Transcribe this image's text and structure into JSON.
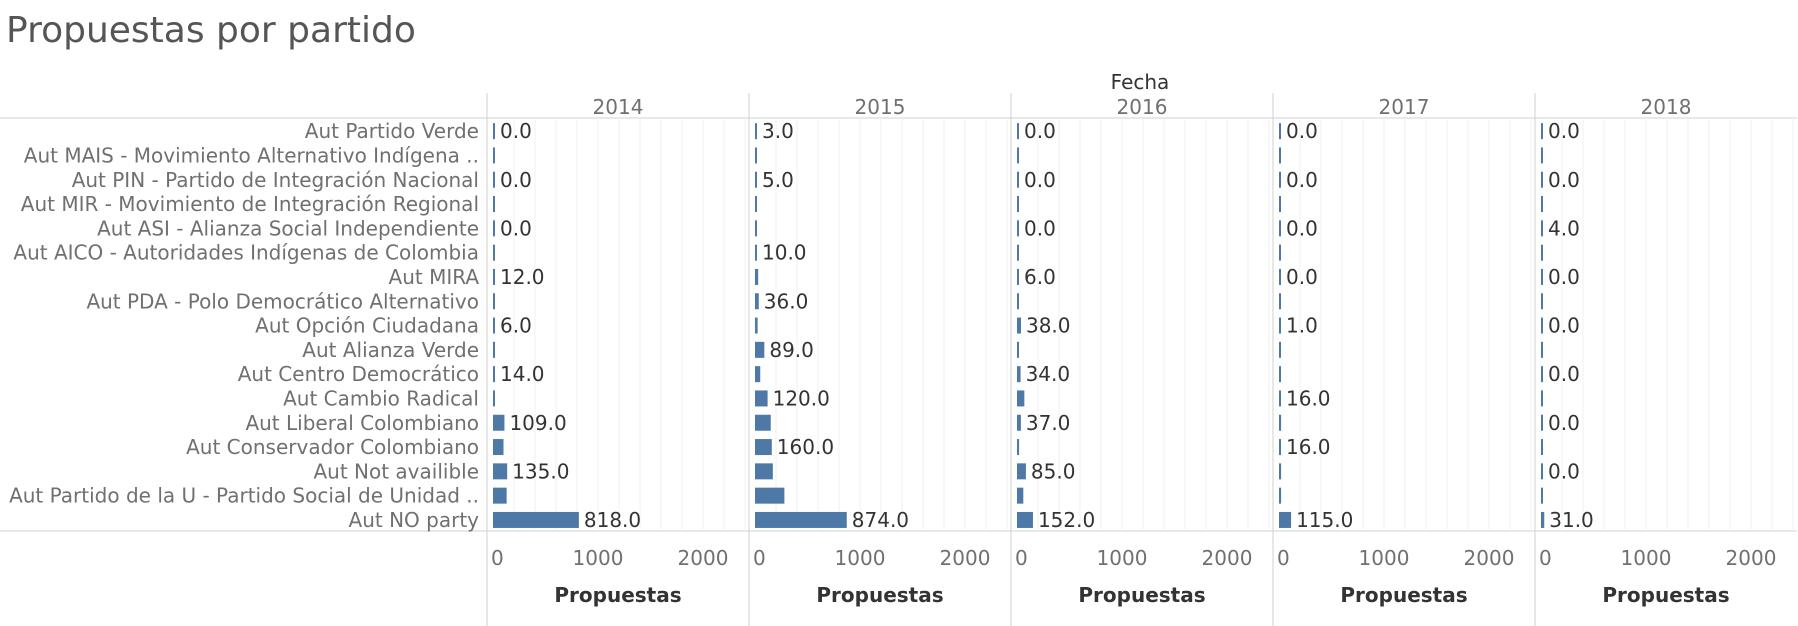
{
  "title": "Propuestas por partido",
  "colors": {
    "bar": "#4e79a7",
    "grid": "#f0f0f0",
    "divider": "#d0d0d0"
  },
  "chart_data": {
    "type": "bar",
    "orientation": "horizontal",
    "title": "Propuestas por partido",
    "column_title": "Fecha",
    "xlabel": "Propuestas",
    "xlim": [
      0,
      2400
    ],
    "xticks": [
      0,
      1000,
      2000
    ],
    "xtick_labels": [
      "0",
      "1000",
      "2000"
    ],
    "categories": [
      "Aut Partido Verde",
      "Aut MAIS - Movimiento Alternativo Indígena ..",
      "Aut PIN - Partido de Integración Nacional",
      "Aut MIR - Movimiento de Integración Regional",
      "Aut ASI - Alianza Social Independiente",
      "Aut AICO - Autoridades Indígenas de Colombia",
      "Aut MIRA",
      "Aut PDA - Polo Democrático Alternativo",
      "Aut Opción Ciudadana",
      "Aut Alianza Verde",
      "Aut Centro Democrático",
      "Aut Cambio Radical",
      "Aut Liberal Colombiano",
      "Aut Conservador Colombiano",
      "Aut Not availible",
      "Aut Partido de la U - Partido Social de Unidad ..",
      "Aut NO party"
    ],
    "series": [
      {
        "name": "2014",
        "values": [
          0,
          3,
          0,
          2,
          0,
          2,
          12,
          3,
          6,
          3,
          14,
          15,
          109,
          100,
          135,
          130,
          818
        ],
        "labels": [
          "0.0",
          "",
          "0.0",
          "",
          "0.0",
          "",
          "12.0",
          "",
          "6.0",
          "",
          "14.0",
          "",
          "109.0",
          "",
          "135.0",
          "",
          "818.0"
        ]
      },
      {
        "name": "2015",
        "values": [
          3,
          2,
          5,
          2,
          3,
          10,
          30,
          36,
          25,
          89,
          50,
          120,
          150,
          160,
          170,
          280,
          874
        ],
        "labels": [
          "3.0",
          "",
          "5.0",
          "",
          "",
          "10.0",
          "",
          "36.0",
          "",
          "89.0",
          "",
          "120.0",
          "",
          "160.0",
          "",
          "",
          "874.0"
        ]
      },
      {
        "name": "2016",
        "values": [
          0,
          2,
          0,
          2,
          0,
          2,
          6,
          3,
          38,
          3,
          34,
          70,
          37,
          20,
          85,
          60,
          152
        ],
        "labels": [
          "0.0",
          "",
          "0.0",
          "",
          "0.0",
          "",
          "6.0",
          "",
          "38.0",
          "",
          "34.0",
          "",
          "37.0",
          "",
          "85.0",
          "",
          "152.0"
        ]
      },
      {
        "name": "2017",
        "values": [
          0,
          2,
          0,
          2,
          0,
          2,
          0,
          2,
          1,
          2,
          2,
          16,
          20,
          16,
          20,
          20,
          115
        ],
        "labels": [
          "0.0",
          "",
          "0.0",
          "",
          "0.0",
          "",
          "0.0",
          "",
          "1.0",
          "",
          "",
          "16.0",
          "",
          "16.0",
          "",
          "",
          "115.0"
        ]
      },
      {
        "name": "2018",
        "values": [
          0,
          2,
          0,
          2,
          4,
          2,
          0,
          2,
          0,
          2,
          0,
          2,
          0,
          2,
          0,
          2,
          31
        ],
        "labels": [
          "0.0",
          "",
          "0.0",
          "",
          "4.0",
          "",
          "0.0",
          "",
          "0.0",
          "",
          "0.0",
          "",
          "0.0",
          "",
          "0.0",
          "",
          "31.0"
        ]
      }
    ]
  }
}
